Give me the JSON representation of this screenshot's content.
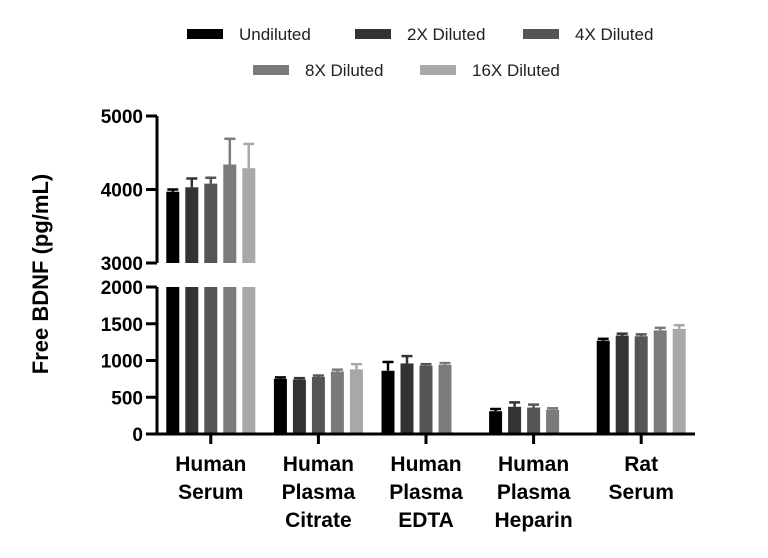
{
  "chart_data": {
    "type": "bar",
    "title": "",
    "ylabel": "Free BDNF (pg/mL)",
    "xlabel": "",
    "categories": [
      [
        "Human",
        "Serum"
      ],
      [
        "Human",
        "Plasma",
        "Citrate"
      ],
      [
        "Human",
        "Plasma",
        "EDTA"
      ],
      [
        "Human",
        "Plasma",
        "Heparin"
      ],
      [
        "Rat",
        "Serum"
      ]
    ],
    "series": [
      {
        "name": "Undiluted",
        "color": "#000000",
        "values": [
          3970,
          750,
          860,
          310,
          1270
        ],
        "errors": [
          30,
          20,
          120,
          30,
          25
        ]
      },
      {
        "name": "2X Diluted",
        "color": "#333333",
        "values": [
          4030,
          740,
          960,
          370,
          1340
        ],
        "errors": [
          120,
          20,
          100,
          60,
          25
        ]
      },
      {
        "name": "4X Diluted",
        "color": "#555555",
        "values": [
          4080,
          775,
          930,
          360,
          1330
        ],
        "errors": [
          80,
          20,
          20,
          40,
          25
        ]
      },
      {
        "name": "8X Diluted",
        "color": "#7b7b7b",
        "values": [
          4340,
          850,
          940,
          330,
          1410
        ],
        "errors": [
          350,
          25,
          25,
          20,
          35
        ]
      },
      {
        "name": "16X Diluted",
        "color": "#a8a8a8",
        "values": [
          4290,
          880,
          0,
          0,
          1430
        ],
        "errors": [
          330,
          70,
          0,
          0,
          50
        ]
      }
    ],
    "y_segments": [
      {
        "range": [
          0,
          2000
        ],
        "ticks": [
          0,
          500,
          1000,
          1500,
          2000
        ]
      },
      {
        "range": [
          3000,
          5000
        ],
        "ticks": [
          3000,
          4000,
          5000
        ]
      }
    ],
    "legend": "top-center",
    "grid": false
  }
}
